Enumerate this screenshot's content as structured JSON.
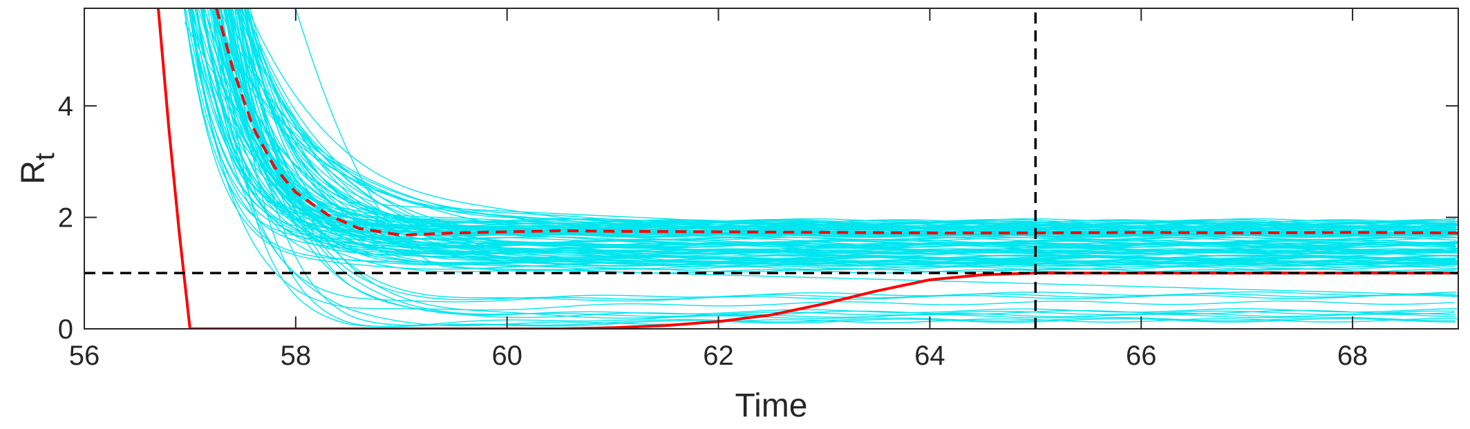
{
  "chart_data": {
    "type": "line",
    "title": "",
    "xlabel": "Time",
    "ylabel": "R",
    "ylabel_subscript": "t",
    "xlim": [
      56,
      69
    ],
    "ylim": [
      0,
      5.75
    ],
    "x_ticks": [
      56,
      58,
      60,
      62,
      64,
      66,
      68
    ],
    "y_ticks": [
      0,
      2,
      4
    ],
    "grid": false,
    "legend": "none",
    "colors": {
      "ensemble": "#00e5ee",
      "estimate": "#ff0000",
      "reference": "#000000",
      "axes": "#262626"
    },
    "series": [
      {
        "style": "solid",
        "color": "#ff0000",
        "x": [
          56.7,
          56.8,
          56.9,
          57.0,
          57.5,
          58,
          59,
          60,
          60.5,
          61,
          61.5,
          62,
          62.5,
          63,
          63.5,
          64,
          64.5,
          65,
          66,
          67,
          68,
          69
        ],
        "y": [
          5.75,
          3.6,
          1.7,
          0.0,
          0.0,
          0.0,
          0.0,
          0.0,
          0.0,
          0.02,
          0.06,
          0.13,
          0.25,
          0.45,
          0.68,
          0.88,
          0.97,
          1.0,
          1.0,
          1.0,
          1.0,
          1.0
        ]
      },
      {
        "style": "dashed",
        "color": "#ff0000",
        "x": [
          57.25,
          57.4,
          57.6,
          57.8,
          58.0,
          58.3,
          58.6,
          59.0,
          59.5,
          60.0,
          60.5,
          61,
          62,
          63,
          64,
          65,
          66,
          67,
          68,
          69
        ],
        "y": [
          5.75,
          4.7,
          3.6,
          2.9,
          2.45,
          2.05,
          1.8,
          1.68,
          1.72,
          1.74,
          1.76,
          1.75,
          1.74,
          1.73,
          1.72,
          1.72,
          1.73,
          1.72,
          1.73,
          1.72
        ]
      },
      {
        "style": "dashed",
        "color": "#000000",
        "x": [
          56,
          69
        ],
        "y": [
          1.0,
          1.0
        ]
      },
      {
        "style": "dashed",
        "color": "#000000",
        "x": [
          65,
          65
        ],
        "y": [
          0,
          5.75
        ]
      }
    ]
  }
}
